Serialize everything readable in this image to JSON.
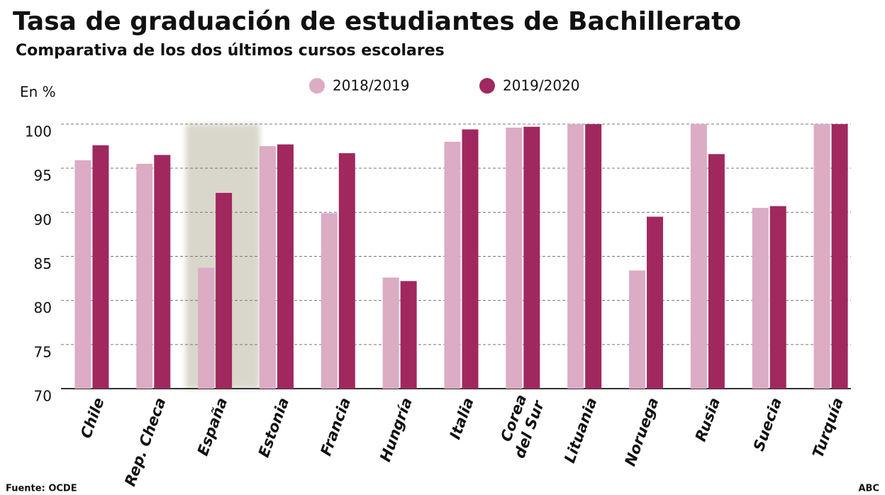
{
  "chart_data": {
    "type": "bar",
    "title": "Tasa de graduación de estudiantes de Bachillerato",
    "subtitle": "Comparativa de los dos últimos cursos escolares",
    "y_label": "En %",
    "source": "Fuente: OCDE",
    "credit": "ABC",
    "categories": [
      "Chile",
      "Rep. Checa",
      "España",
      "Estonia",
      "Francia",
      "Hungría",
      "Italia",
      "Corea\ndel Sur",
      "Lituania",
      "Noruega",
      "Rusia",
      "Suecia",
      "Turquía"
    ],
    "series": [
      {
        "name": "2018/2019",
        "color": "#dcabc4",
        "values": [
          95.9,
          95.5,
          83.7,
          97.5,
          89.9,
          82.6,
          98.0,
          99.6,
          100,
          83.4,
          100,
          90.5,
          100
        ]
      },
      {
        "name": "2019/2020",
        "color": "#a0285f",
        "values": [
          97.6,
          96.5,
          92.2,
          97.7,
          96.7,
          82.2,
          99.4,
          99.7,
          100,
          89.5,
          96.6,
          90.7,
          100
        ]
      }
    ],
    "highlight_category": "España",
    "ylim": [
      70,
      100
    ],
    "yticks": [
      70,
      75,
      80,
      85,
      90,
      95,
      100
    ],
    "grid": true
  }
}
